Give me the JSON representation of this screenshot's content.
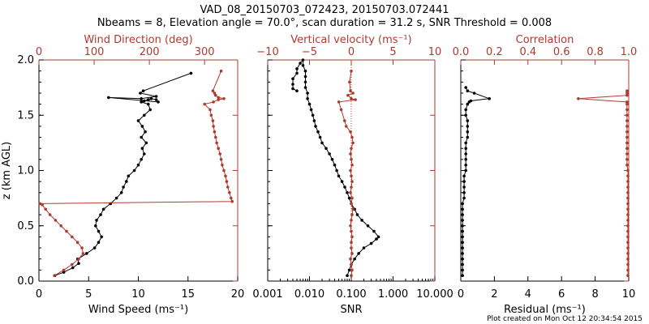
{
  "figure": {
    "title_line1": "VAD_08_20150703_072423, 20150703.072441",
    "title_line2": "Nbeams = 8, Elevation angle = 70.0°, scan duration = 31.2 s, SNR Threshold = 0.008",
    "footer": "Plot created on Mon Oct 12 20:34:54 2015"
  },
  "colors": {
    "primary": "#000000",
    "secondary": "#b03a2e"
  },
  "chart_data": [
    {
      "type": "line",
      "ylabel": "z (km AGL)",
      "ylim": [
        0,
        2.0
      ],
      "yticks": [
        0.0,
        0.5,
        1.0,
        1.5,
        2.0
      ],
      "ytick_labels": [
        "0.0",
        "0.5",
        "1.0",
        "1.5",
        "2.0"
      ],
      "bottom_axis": {
        "label": "Wind Speed (ms⁻¹)",
        "range": [
          0,
          20
        ],
        "ticks": [
          0,
          5,
          10,
          15,
          20
        ],
        "tick_labels": [
          "0",
          "5",
          "10",
          "15",
          "20"
        ]
      },
      "top_axis": {
        "label": "Wind Direction (deg)",
        "range": [
          0,
          360
        ],
        "ticks": [
          0,
          100,
          200,
          300
        ],
        "tick_labels": [
          "0",
          "100",
          "200",
          "300"
        ]
      },
      "series": [
        {
          "name": "Wind Speed",
          "axis": "bottom",
          "color": "#000000",
          "x": [
            1.6,
            2.5,
            3.4,
            4.0,
            3.9,
            4.8,
            5.6,
            6.0,
            6.3,
            6.0,
            5.7,
            5.8,
            6.2,
            6.5,
            7.2,
            7.8,
            8.3,
            8.5,
            8.8,
            9.0,
            9.6,
            10.0,
            10.3,
            10.6,
            10.4,
            10.8,
            10.3,
            10.7,
            10.4,
            10.0,
            10.6,
            11.2,
            11.0,
            10.3,
            10.6,
            11.0,
            11.3,
            11.8,
            12.0,
            7.0,
            10.3,
            11.8,
            10.2,
            10.5,
            15.3
          ],
          "y": [
            0.05,
            0.08,
            0.12,
            0.16,
            0.2,
            0.25,
            0.3,
            0.35,
            0.4,
            0.45,
            0.5,
            0.55,
            0.6,
            0.65,
            0.7,
            0.75,
            0.8,
            0.85,
            0.9,
            0.95,
            1.0,
            1.05,
            1.1,
            1.15,
            1.2,
            1.25,
            1.3,
            1.35,
            1.4,
            1.45,
            1.5,
            1.55,
            1.6,
            1.62,
            1.63,
            1.64,
            1.65,
            1.64,
            1.62,
            1.66,
            1.65,
            1.67,
            1.7,
            1.72,
            1.88
          ]
        },
        {
          "name": "Wind Direction",
          "axis": "top",
          "color": "#b03a2e",
          "x": [
            28,
            45,
            60,
            72,
            80,
            78,
            70,
            60,
            50,
            40,
            30,
            20,
            12,
            6,
            2,
            350,
            348,
            345,
            342,
            340,
            338,
            335,
            332,
            330,
            328,
            325,
            322,
            320,
            318,
            316,
            315,
            312,
            310,
            300,
            316,
            325,
            335,
            325,
            320,
            318,
            315,
            330
          ],
          "y": [
            0.05,
            0.1,
            0.15,
            0.2,
            0.25,
            0.3,
            0.35,
            0.4,
            0.45,
            0.5,
            0.55,
            0.6,
            0.65,
            0.69,
            0.7,
            0.72,
            0.75,
            0.8,
            0.85,
            0.9,
            0.95,
            1.0,
            1.05,
            1.1,
            1.15,
            1.2,
            1.25,
            1.3,
            1.35,
            1.4,
            1.45,
            1.5,
            1.55,
            1.6,
            1.62,
            1.64,
            1.65,
            1.66,
            1.68,
            1.7,
            1.72,
            1.9
          ]
        }
      ]
    },
    {
      "type": "line",
      "ylim": [
        0,
        2.0
      ],
      "reference_line": {
        "axis": "top",
        "value": 0
      },
      "bottom_axis": {
        "label": "SNR",
        "scale": "log",
        "range": [
          0.001,
          10
        ],
        "ticks": [
          0.001,
          0.01,
          0.1,
          1,
          10
        ],
        "tick_labels": [
          "0.001",
          "0.010",
          "0.100",
          "1.000",
          "10.000"
        ]
      },
      "top_axis": {
        "label": "Vertical velocity (ms⁻¹)",
        "range": [
          -10,
          10
        ],
        "ticks": [
          -10,
          -5,
          0,
          5,
          10
        ],
        "tick_labels": [
          "−10",
          "−5",
          "0",
          "5",
          "10"
        ]
      },
      "series": [
        {
          "name": "SNR",
          "axis": "bottom",
          "color": "#000000",
          "x": [
            0.08,
            0.09,
            0.1,
            0.12,
            0.15,
            0.2,
            0.3,
            0.4,
            0.45,
            0.35,
            0.25,
            0.18,
            0.14,
            0.12,
            0.1,
            0.09,
            0.08,
            0.07,
            0.06,
            0.05,
            0.045,
            0.04,
            0.035,
            0.03,
            0.025,
            0.02,
            0.018,
            0.016,
            0.014,
            0.013,
            0.012,
            0.011,
            0.01,
            0.009,
            0.009,
            0.008,
            0.008,
            0.008,
            0.008,
            0.007,
            0.007,
            0.006,
            0.005,
            0.005,
            0.004,
            0.004,
            0.004,
            0.005
          ],
          "y": [
            0.05,
            0.1,
            0.15,
            0.2,
            0.25,
            0.3,
            0.34,
            0.38,
            0.4,
            0.45,
            0.5,
            0.55,
            0.6,
            0.65,
            0.7,
            0.75,
            0.8,
            0.85,
            0.9,
            0.95,
            1.0,
            1.05,
            1.1,
            1.15,
            1.2,
            1.25,
            1.3,
            1.35,
            1.4,
            1.45,
            1.5,
            1.55,
            1.6,
            1.65,
            1.7,
            1.75,
            1.8,
            1.85,
            1.9,
            1.95,
            2.0,
            1.97,
            1.92,
            1.88,
            1.83,
            1.78,
            1.74,
            1.72
          ]
        },
        {
          "name": "Vertical velocity",
          "axis": "top",
          "color": "#b03a2e",
          "x": [
            0.0,
            0.1,
            0.0,
            -0.1,
            0.1,
            0.0,
            0.0,
            0.1,
            0.0,
            -0.1,
            0.0,
            0.1,
            0.2,
            0.0,
            0.1,
            -0.1,
            0.0,
            0.1,
            0.0,
            -0.1,
            0.1,
            0.0,
            -0.1,
            0.0,
            0.2,
            0.1,
            -0.1,
            -0.6,
            -0.8,
            -1.2,
            -1.5,
            0.5,
            0.0,
            -0.4,
            0.2,
            -0.1,
            -0.2,
            0.0
          ],
          "y": [
            0.05,
            0.1,
            0.15,
            0.2,
            0.25,
            0.3,
            0.35,
            0.4,
            0.45,
            0.5,
            0.55,
            0.6,
            0.65,
            0.7,
            0.75,
            0.8,
            0.85,
            0.9,
            0.95,
            1.0,
            1.05,
            1.1,
            1.15,
            1.2,
            1.25,
            1.3,
            1.35,
            1.4,
            1.45,
            1.55,
            1.62,
            1.64,
            1.65,
            1.68,
            1.7,
            1.72,
            1.8,
            1.9
          ]
        }
      ]
    },
    {
      "type": "line",
      "ylim": [
        0,
        2.0
      ],
      "bottom_axis": {
        "label": "Residual (ms⁻¹)",
        "range": [
          0,
          10
        ],
        "ticks": [
          0,
          2,
          4,
          6,
          8,
          10
        ],
        "tick_labels": [
          "0",
          "2",
          "4",
          "6",
          "8",
          "10"
        ]
      },
      "top_axis": {
        "label": "Correlation",
        "range": [
          0,
          1.0
        ],
        "ticks": [
          0,
          0.2,
          0.4,
          0.6,
          0.8,
          1.0
        ],
        "tick_labels": [
          "0.0",
          "0.2",
          "0.4",
          "0.6",
          "0.8",
          "1.0"
        ]
      },
      "series": [
        {
          "name": "Residual",
          "axis": "bottom",
          "color": "#000000",
          "x": [
            0.1,
            0.1,
            0.1,
            0.1,
            0.1,
            0.1,
            0.1,
            0.1,
            0.1,
            0.1,
            0.1,
            0.1,
            0.1,
            0.1,
            0.2,
            0.2,
            0.2,
            0.2,
            0.2,
            0.3,
            0.3,
            0.3,
            0.3,
            0.3,
            0.3,
            0.4,
            0.4,
            0.4,
            0.4,
            0.3,
            0.3,
            0.4,
            0.5,
            0.6,
            1.7,
            0.8,
            0.4,
            0.3
          ],
          "y": [
            0.05,
            0.1,
            0.15,
            0.2,
            0.25,
            0.3,
            0.35,
            0.4,
            0.45,
            0.5,
            0.55,
            0.6,
            0.65,
            0.7,
            0.75,
            0.8,
            0.85,
            0.9,
            0.95,
            1.0,
            1.05,
            1.1,
            1.15,
            1.2,
            1.25,
            1.3,
            1.35,
            1.4,
            1.45,
            1.5,
            1.55,
            1.6,
            1.62,
            1.63,
            1.65,
            1.7,
            1.72,
            1.75
          ]
        },
        {
          "name": "Correlation",
          "axis": "top",
          "color": "#b03a2e",
          "x": [
            0.995,
            0.995,
            0.995,
            0.995,
            0.995,
            0.995,
            0.995,
            0.995,
            0.995,
            0.995,
            0.995,
            0.995,
            0.995,
            0.995,
            0.995,
            0.995,
            0.995,
            0.995,
            0.995,
            0.995,
            0.99,
            0.99,
            0.99,
            0.99,
            0.99,
            0.99,
            0.99,
            0.99,
            0.99,
            0.99,
            0.99,
            0.99,
            0.99,
            0.7,
            0.99,
            0.99,
            0.99
          ],
          "y": [
            0.05,
            0.1,
            0.15,
            0.2,
            0.25,
            0.3,
            0.35,
            0.4,
            0.45,
            0.5,
            0.55,
            0.6,
            0.65,
            0.7,
            0.75,
            0.8,
            0.85,
            0.9,
            0.95,
            1.0,
            1.05,
            1.1,
            1.15,
            1.2,
            1.25,
            1.3,
            1.35,
            1.4,
            1.45,
            1.5,
            1.55,
            1.6,
            1.62,
            1.65,
            1.68,
            1.7,
            1.72
          ]
        }
      ]
    }
  ]
}
